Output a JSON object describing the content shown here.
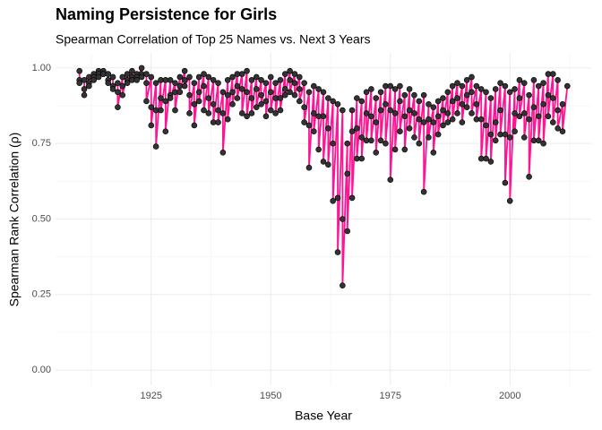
{
  "chart_data": {
    "type": "line",
    "title": "Naming Persistence for Girls",
    "subtitle": "Spearman Correlation of Top 25 Names vs. Next 3 Years",
    "x_label": "Base Year",
    "y_label": "Spearman Rank Correlation (ρ)",
    "xlim": [
      1905,
      2017
    ],
    "xticks": [
      1925,
      1950,
      1975,
      2000
    ],
    "ylim": [
      -0.05,
      1.05
    ],
    "yticks": [
      {
        "value": 0,
        "label": "0.00"
      },
      {
        "value": 0.25,
        "label": "0.25"
      },
      {
        "value": 0.5,
        "label": "0.50"
      },
      {
        "value": 0.75,
        "label": "0.75"
      },
      {
        "value": 1,
        "label": "1.00"
      }
    ],
    "grid": true,
    "color": "#ff1493",
    "point_color": "#333333",
    "x": [
      1910,
      1910,
      1910,
      1911,
      1911,
      1911,
      1912,
      1912,
      1912,
      1913,
      1913,
      1913,
      1914,
      1914,
      1914,
      1915,
      1915,
      1915,
      1916,
      1916,
      1916,
      1917,
      1917,
      1917,
      1918,
      1918,
      1918,
      1919,
      1919,
      1919,
      1920,
      1920,
      1920,
      1921,
      1921,
      1921,
      1922,
      1922,
      1922,
      1923,
      1923,
      1923,
      1924,
      1924,
      1924,
      1925,
      1925,
      1925,
      1926,
      1926,
      1926,
      1927,
      1927,
      1927,
      1928,
      1928,
      1928,
      1929,
      1929,
      1929,
      1930,
      1930,
      1930,
      1931,
      1931,
      1931,
      1932,
      1932,
      1932,
      1933,
      1933,
      1933,
      1934,
      1934,
      1934,
      1935,
      1935,
      1935,
      1936,
      1936,
      1936,
      1937,
      1937,
      1937,
      1938,
      1938,
      1938,
      1939,
      1939,
      1939,
      1940,
      1940,
      1940,
      1941,
      1941,
      1941,
      1942,
      1942,
      1942,
      1943,
      1943,
      1943,
      1944,
      1944,
      1944,
      1945,
      1945,
      1945,
      1946,
      1946,
      1946,
      1947,
      1947,
      1947,
      1948,
      1948,
      1948,
      1949,
      1949,
      1949,
      1950,
      1950,
      1950,
      1951,
      1951,
      1951,
      1952,
      1952,
      1952,
      1953,
      1953,
      1953,
      1954,
      1954,
      1954,
      1955,
      1955,
      1955,
      1956,
      1956,
      1956,
      1957,
      1957,
      1957,
      1958,
      1958,
      1958,
      1959,
      1959,
      1959,
      1960,
      1960,
      1960,
      1961,
      1961,
      1961,
      1962,
      1962,
      1962,
      1963,
      1963,
      1963,
      1964,
      1964,
      1964,
      1965,
      1965,
      1965,
      1966,
      1966,
      1966,
      1967,
      1967,
      1967,
      1968,
      1968,
      1968,
      1969,
      1969,
      1969,
      1970,
      1970,
      1970,
      1971,
      1971,
      1971,
      1972,
      1972,
      1972,
      1973,
      1973,
      1973,
      1974,
      1974,
      1974,
      1975,
      1975,
      1975,
      1976,
      1976,
      1976,
      1977,
      1977,
      1977,
      1978,
      1978,
      1978,
      1979,
      1979,
      1979,
      1980,
      1980,
      1980,
      1981,
      1981,
      1981,
      1982,
      1982,
      1982,
      1983,
      1983,
      1983,
      1984,
      1984,
      1984,
      1985,
      1985,
      1985,
      1986,
      1986,
      1986,
      1987,
      1987,
      1987,
      1988,
      1988,
      1988,
      1989,
      1989,
      1989,
      1990,
      1990,
      1990,
      1991,
      1991,
      1991,
      1992,
      1992,
      1992,
      1993,
      1993,
      1993,
      1994,
      1994,
      1994,
      1995,
      1995,
      1995,
      1996,
      1996,
      1996,
      1997,
      1997,
      1997,
      1998,
      1998,
      1998,
      1999,
      1999,
      1999,
      2000,
      2000,
      2000,
      2001,
      2001,
      2001,
      2002,
      2002,
      2002,
      2003,
      2003,
      2003,
      2004,
      2004,
      2004,
      2005,
      2005,
      2005,
      2006,
      2006,
      2006,
      2007,
      2007,
      2007,
      2008,
      2008,
      2008,
      2009,
      2009,
      2009,
      2010,
      2010,
      2010,
      2011,
      2011,
      2012
    ],
    "values": [
      0.99,
      0.96,
      0.95,
      0.96,
      0.93,
      0.91,
      0.97,
      0.95,
      0.94,
      0.98,
      0.97,
      0.96,
      0.99,
      0.98,
      0.97,
      0.99,
      0.98,
      0.98,
      0.98,
      0.96,
      0.95,
      0.97,
      0.94,
      0.93,
      0.95,
      0.92,
      0.87,
      0.97,
      0.94,
      0.91,
      0.98,
      0.96,
      0.95,
      0.99,
      0.97,
      0.96,
      0.98,
      0.97,
      0.96,
      1.0,
      0.98,
      0.97,
      0.98,
      0.95,
      0.89,
      0.97,
      0.87,
      0.81,
      0.95,
      0.86,
      0.74,
      0.96,
      0.9,
      0.86,
      0.96,
      0.89,
      0.79,
      0.96,
      0.91,
      0.9,
      0.95,
      0.92,
      0.86,
      0.97,
      0.94,
      0.92,
      0.99,
      0.96,
      0.94,
      0.97,
      0.91,
      0.85,
      0.95,
      0.88,
      0.81,
      0.97,
      0.92,
      0.89,
      0.98,
      0.94,
      0.86,
      0.97,
      0.9,
      0.85,
      0.96,
      0.88,
      0.82,
      0.95,
      0.86,
      0.82,
      0.92,
      0.85,
      0.72,
      0.96,
      0.91,
      0.83,
      0.97,
      0.92,
      0.88,
      0.98,
      0.94,
      0.9,
      0.98,
      0.93,
      0.85,
      0.99,
      0.92,
      0.84,
      0.96,
      0.9,
      0.85,
      0.97,
      0.93,
      0.87,
      0.96,
      0.91,
      0.88,
      0.95,
      0.89,
      0.84,
      0.97,
      0.92,
      0.86,
      0.95,
      0.9,
      0.85,
      0.96,
      0.9,
      0.86,
      0.98,
      0.93,
      0.91,
      0.99,
      0.96,
      0.92,
      0.98,
      0.95,
      0.91,
      0.97,
      0.93,
      0.89,
      0.95,
      0.87,
      0.82,
      0.92,
      0.81,
      0.67,
      0.94,
      0.85,
      0.79,
      0.93,
      0.84,
      0.73,
      0.92,
      0.84,
      0.69,
      0.9,
      0.8,
      0.68,
      0.89,
      0.75,
      0.56,
      0.88,
      0.57,
      0.39,
      0.86,
      0.5,
      0.28,
      0.75,
      0.65,
      0.46,
      0.86,
      0.79,
      0.57,
      0.9,
      0.8,
      0.7,
      0.89,
      0.77,
      0.7,
      0.92,
      0.85,
      0.76,
      0.93,
      0.84,
      0.76,
      0.9,
      0.82,
      0.72,
      0.92,
      0.86,
      0.76,
      0.94,
      0.88,
      0.75,
      0.94,
      0.86,
      0.63,
      0.93,
      0.85,
      0.73,
      0.94,
      0.89,
      0.79,
      0.91,
      0.84,
      0.73,
      0.93,
      0.86,
      0.8,
      0.91,
      0.85,
      0.77,
      0.89,
      0.83,
      0.75,
      0.91,
      0.82,
      0.59,
      0.88,
      0.83,
      0.77,
      0.87,
      0.82,
      0.72,
      0.89,
      0.84,
      0.78,
      0.9,
      0.86,
      0.81,
      0.92,
      0.85,
      0.82,
      0.94,
      0.89,
      0.83,
      0.95,
      0.9,
      0.85,
      0.94,
      0.88,
      0.82,
      0.96,
      0.91,
      0.87,
      0.97,
      0.92,
      0.85,
      0.94,
      0.88,
      0.83,
      0.93,
      0.83,
      0.7,
      0.92,
      0.81,
      0.7,
      0.9,
      0.78,
      0.69,
      0.93,
      0.82,
      0.76,
      0.95,
      0.86,
      0.78,
      0.94,
      0.78,
      0.62,
      0.92,
      0.77,
      0.56,
      0.93,
      0.85,
      0.79,
      0.96,
      0.9,
      0.84,
      0.95,
      0.85,
      0.77,
      0.91,
      0.83,
      0.64,
      0.96,
      0.87,
      0.76,
      0.94,
      0.84,
      0.76,
      0.95,
      0.88,
      0.75,
      0.98,
      0.91,
      0.84,
      0.98,
      0.9,
      0.82,
      0.96,
      0.86,
      0.8,
      0.88,
      0.79,
      0.94
    ]
  }
}
